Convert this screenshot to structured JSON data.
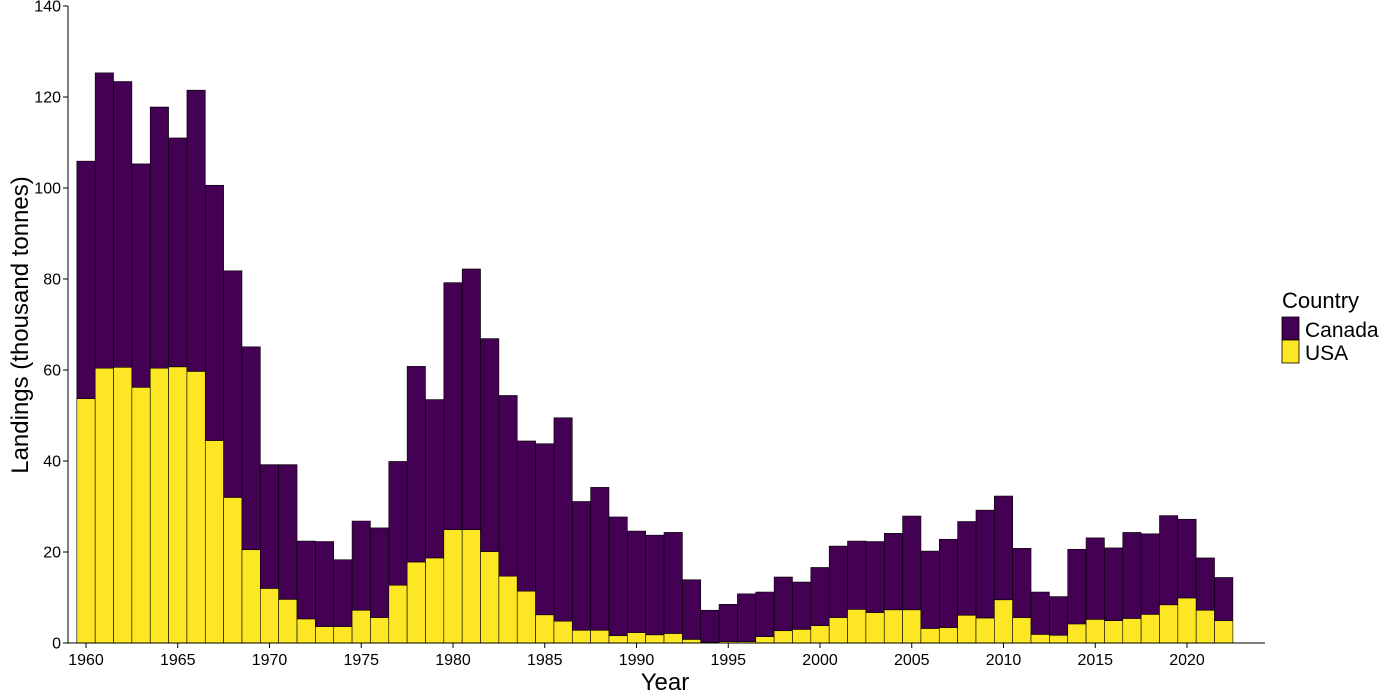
{
  "chart_data": {
    "type": "bar",
    "stacked": true,
    "xlabel": "Year",
    "ylabel": "Landings (thousand tonnes)",
    "ylim": [
      0,
      140
    ],
    "yticks": [
      0,
      20,
      40,
      60,
      80,
      100,
      120,
      140
    ],
    "xticks": [
      1960,
      1965,
      1970,
      1975,
      1980,
      1985,
      1990,
      1995,
      2000,
      2005,
      2010,
      2015,
      2020
    ],
    "grid": false,
    "legend": {
      "title": "Country",
      "position": "right"
    },
    "x": [
      1960,
      1961,
      1962,
      1963,
      1964,
      1965,
      1966,
      1967,
      1968,
      1969,
      1970,
      1971,
      1972,
      1973,
      1974,
      1975,
      1976,
      1977,
      1978,
      1979,
      1980,
      1981,
      1982,
      1983,
      1984,
      1985,
      1986,
      1987,
      1988,
      1989,
      1990,
      1991,
      1992,
      1993,
      1994,
      1995,
      1996,
      1997,
      1998,
      1999,
      2000,
      2001,
      2002,
      2003,
      2004,
      2005,
      2006,
      2007,
      2008,
      2009,
      2010,
      2011,
      2012,
      2013,
      2014,
      2015,
      2016,
      2017,
      2018,
      2019,
      2020,
      2021,
      2022
    ],
    "series": [
      {
        "name": "USA",
        "color": "#FDE725",
        "values": [
          53.7,
          60.4,
          60.6,
          56.2,
          60.4,
          60.7,
          59.7,
          44.5,
          32.0,
          20.5,
          12.0,
          9.6,
          5.3,
          3.6,
          3.6,
          7.2,
          5.6,
          12.7,
          17.8,
          18.7,
          24.9,
          24.9,
          20.1,
          14.7,
          11.4,
          6.2,
          4.8,
          2.8,
          2.8,
          1.6,
          2.3,
          1.8,
          2.1,
          0.8,
          0.2,
          0.3,
          0.3,
          1.4,
          2.7,
          3.0,
          3.8,
          5.6,
          7.4,
          6.7,
          7.3,
          7.3,
          3.2,
          3.4,
          6.1,
          5.5,
          9.5,
          5.6,
          1.9,
          1.7,
          4.2,
          5.2,
          4.9,
          5.4,
          6.3,
          8.4,
          9.9,
          7.2,
          4.9
        ]
      },
      {
        "name": "Canada",
        "color": "#440154",
        "values": [
          52.2,
          64.9,
          62.8,
          49.1,
          57.4,
          50.3,
          61.8,
          56.1,
          49.8,
          44.6,
          27.2,
          29.6,
          17.1,
          18.7,
          14.7,
          19.6,
          19.7,
          27.2,
          43.0,
          34.8,
          54.3,
          57.3,
          46.8,
          39.7,
          33.0,
          37.6,
          44.7,
          28.3,
          31.4,
          26.1,
          22.3,
          21.9,
          22.2,
          13.1,
          7.0,
          8.2,
          10.5,
          9.8,
          11.8,
          10.4,
          12.8,
          15.7,
          15.0,
          15.6,
          16.8,
          20.6,
          17.0,
          19.4,
          20.6,
          23.7,
          22.8,
          15.2,
          9.3,
          8.5,
          16.4,
          17.9,
          16.0,
          18.9,
          17.7,
          19.6,
          17.3,
          11.5,
          9.5
        ]
      }
    ]
  }
}
